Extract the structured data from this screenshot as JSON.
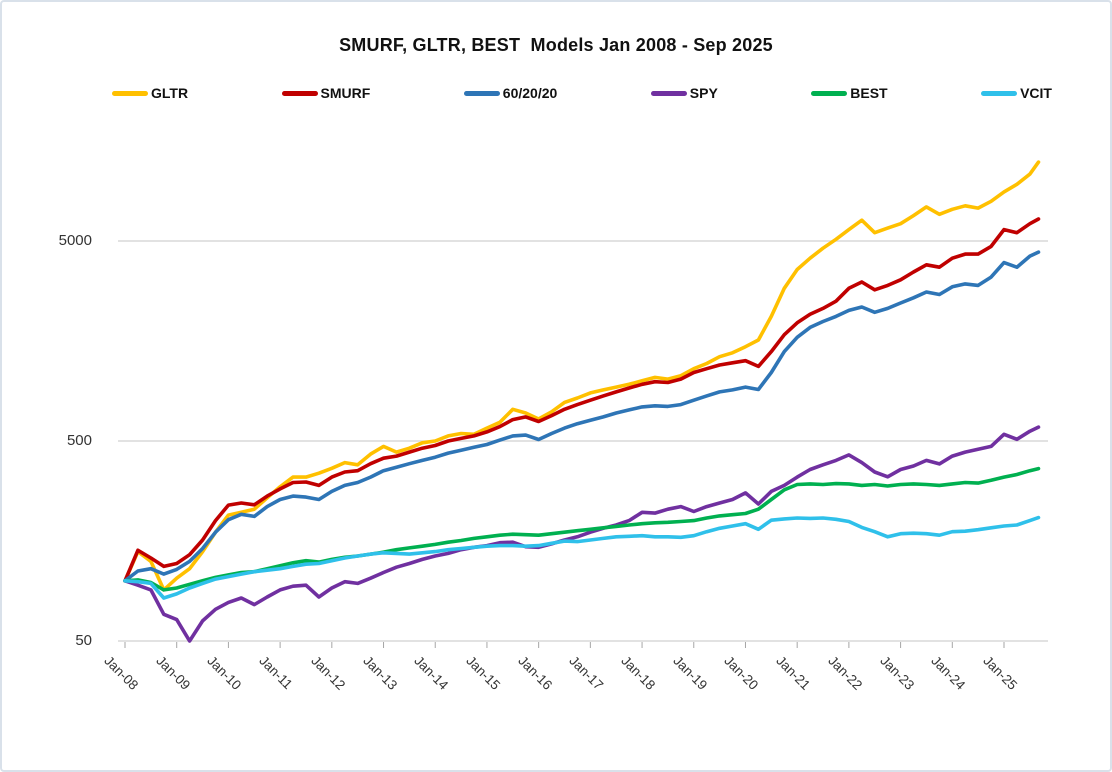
{
  "chart_data": {
    "type": "line",
    "title": "SMURF, GLTR, BEST  Models Jan 2008 - Sep 2025",
    "legend": {
      "position": "top",
      "entries": [
        "GLTR",
        "SMURF",
        "60/20/20",
        "SPY",
        "BEST",
        "VCIT"
      ]
    },
    "y_axis": {
      "scale": "log",
      "ticks": [
        5000,
        500,
        50
      ],
      "tick_labels": [
        "5000",
        "500",
        "50"
      ],
      "grid": true
    },
    "x_axis": {
      "tick_labels": [
        "Jan-08",
        "Jan-09",
        "Jan-10",
        "Jan-11",
        "Jan-12",
        "Jan-13",
        "Jan-14",
        "Jan-15",
        "Jan-16",
        "Jan-17",
        "Jan-18",
        "Jan-19",
        "Jan-20",
        "Jan-21",
        "Jan-22",
        "Jan-23",
        "Jan-24",
        "Jan-25"
      ],
      "label_rotation_deg": 45
    },
    "x_months_since_jan_2008": [
      0,
      3,
      6,
      9,
      12,
      15,
      18,
      21,
      24,
      27,
      30,
      33,
      36,
      39,
      42,
      45,
      48,
      51,
      54,
      57,
      60,
      63,
      66,
      69,
      72,
      75,
      78,
      81,
      84,
      87,
      90,
      93,
      96,
      99,
      102,
      105,
      108,
      111,
      114,
      117,
      120,
      123,
      126,
      129,
      132,
      135,
      138,
      141,
      144,
      147,
      150,
      153,
      156,
      159,
      162,
      165,
      168,
      171,
      174,
      177,
      180,
      183,
      186,
      189,
      192,
      195,
      198,
      201,
      204,
      207,
      210,
      212
    ],
    "series": [
      {
        "name": "GLTR",
        "color": "#FFC000",
        "values": [
          100,
          140,
          125,
          90,
          103,
          115,
          140,
          175,
          213,
          220,
          228,
          260,
          295,
          330,
          330,
          345,
          365,
          390,
          380,
          430,
          470,
          440,
          460,
          490,
          500,
          530,
          545,
          540,
          580,
          620,
          720,
          690,
          644,
          700,
          780,
          820,
          870,
          900,
          930,
          960,
          1000,
          1040,
          1020,
          1060,
          1150,
          1220,
          1320,
          1380,
          1480,
          1600,
          2100,
          2900,
          3600,
          4100,
          4600,
          5100,
          5700,
          6350,
          5500,
          5800,
          6100,
          6700,
          7400,
          6800,
          7200,
          7500,
          7300,
          7900,
          8800,
          9600,
          10800,
          12400
        ]
      },
      {
        "name": "SMURF",
        "color": "#C00000",
        "values": [
          100,
          142,
          130,
          118,
          122,
          135,
          160,
          200,
          239,
          245,
          240,
          265,
          288,
          310,
          312,
          300,
          330,
          350,
          355,
          385,
          410,
          420,
          440,
          460,
          475,
          500,
          515,
          530,
          555,
          590,
          640,
          660,
          626,
          670,
          720,
          760,
          800,
          840,
          880,
          920,
          960,
          990,
          980,
          1020,
          1100,
          1150,
          1200,
          1230,
          1260,
          1180,
          1400,
          1700,
          1950,
          2150,
          2300,
          2500,
          2900,
          3120,
          2850,
          3000,
          3200,
          3500,
          3800,
          3700,
          4100,
          4300,
          4300,
          4700,
          5700,
          5500,
          6100,
          6440
        ]
      },
      {
        "name": "60/20/20",
        "color": "#2E75B6",
        "values": [
          100,
          112,
          115,
          108,
          114,
          125,
          145,
          175,
          202,
          215,
          210,
          235,
          255,
          265,
          262,
          255,
          280,
          300,
          310,
          330,
          355,
          370,
          385,
          400,
          415,
          435,
          450,
          465,
          480,
          505,
          530,
          535,
          509,
          545,
          580,
          610,
          635,
          660,
          690,
          715,
          740,
          750,
          745,
          760,
          800,
          840,
          880,
          900,
          930,
          905,
          1100,
          1400,
          1650,
          1850,
          1980,
          2100,
          2250,
          2340,
          2200,
          2300,
          2450,
          2600,
          2780,
          2700,
          2950,
          3050,
          3000,
          3300,
          3900,
          3700,
          4200,
          4400
        ]
      },
      {
        "name": "SPY",
        "color": "#7030A0",
        "values": [
          100,
          95,
          90,
          68,
          64,
          50,
          63,
          72,
          78,
          82,
          76,
          83,
          90,
          94,
          95,
          83,
          92,
          99,
          97,
          103,
          110,
          117,
          122,
          128,
          133,
          137,
          143,
          147,
          150,
          155,
          156,
          148,
          147,
          153,
          160,
          166,
          175,
          183,
          190,
          200,
          220,
          218,
          228,
          235,
          222,
          235,
          245,
          255,
          275,
          242,
          280,
          300,
          330,
          360,
          380,
          400,
          426,
          390,
          350,
          331,
          360,
          375,
          400,
          384,
          420,
          440,
          455,
          470,
          540,
          510,
          560,
          587
        ]
      },
      {
        "name": "BEST",
        "color": "#00B050",
        "values": [
          100,
          101,
          98,
          90,
          92,
          96,
          100,
          104,
          107,
          110,
          111,
          115,
          119,
          123,
          126,
          124,
          128,
          131,
          133,
          136,
          139,
          143,
          146,
          149,
          152,
          156,
          159,
          163,
          166,
          169,
          171,
          170,
          169,
          172,
          175,
          178,
          181,
          184,
          187,
          190,
          193,
          195,
          196,
          198,
          200,
          206,
          211,
          214,
          217,
          228,
          255,
          285,
          303,
          305,
          303,
          306,
          305,
          300,
          303,
          298,
          303,
          305,
          303,
          300,
          305,
          310,
          308,
          318,
          330,
          340,
          355,
          364
        ]
      },
      {
        "name": "VCIT",
        "color": "#2FC0EA",
        "values": [
          100,
          99,
          97,
          82,
          86,
          92,
          97,
          102,
          105,
          108,
          111,
          113,
          115,
          118,
          121,
          122,
          126,
          130,
          133,
          136,
          138,
          137,
          136,
          138,
          140,
          143,
          145,
          147,
          149,
          150,
          150,
          149,
          150,
          154,
          158,
          157,
          160,
          163,
          166,
          167,
          168,
          166,
          166,
          165,
          168,
          176,
          183,
          188,
          193,
          181,
          201,
          204,
          206,
          205,
          206,
          203,
          198,
          185,
          176,
          166,
          172,
          173,
          172,
          169,
          176,
          177,
          180,
          184,
          188,
          190,
          200,
          207
        ]
      }
    ]
  }
}
